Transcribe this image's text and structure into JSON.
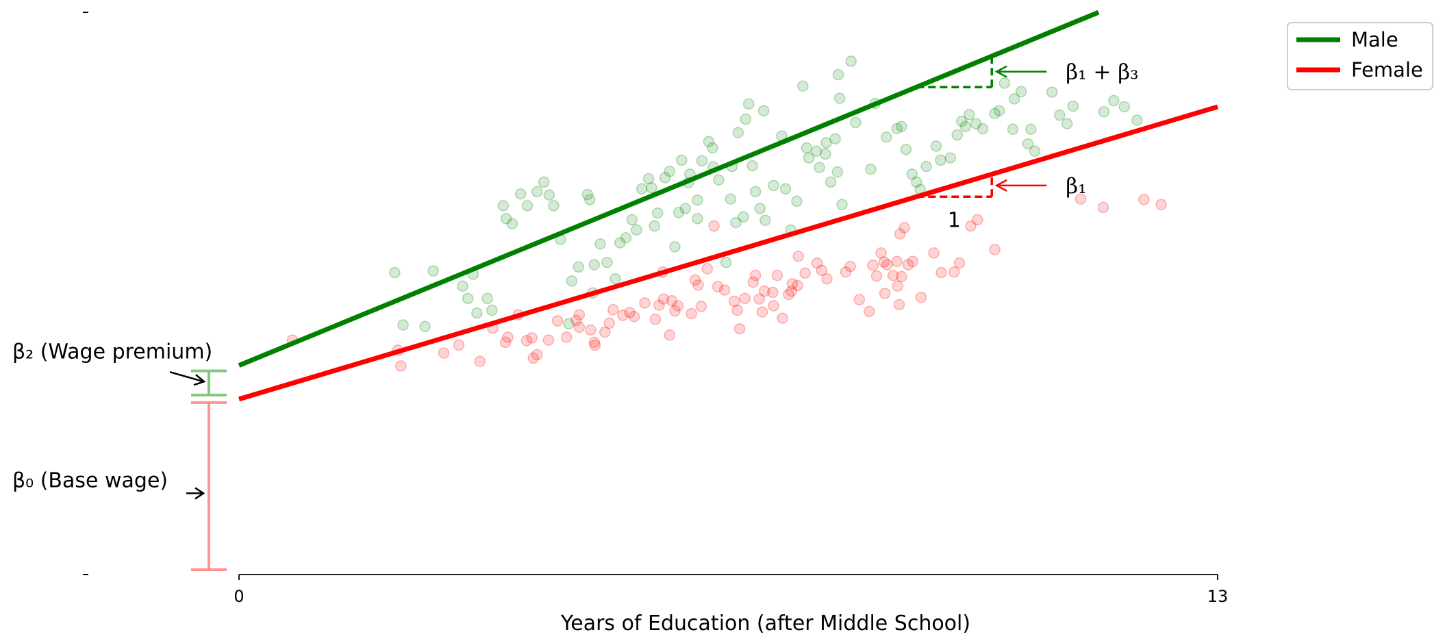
{
  "chart_data": {
    "type": "scatter",
    "xlabel": "Years of Education (after Middle School)",
    "x_ticks": [
      "0",
      "13"
    ],
    "xlim": [
      0,
      13
    ],
    "ylim": [
      0,
      10
    ],
    "grid": false,
    "legend_position": "top-right",
    "series": [
      {
        "name": "Male",
        "color": "#008000",
        "line": {
          "intercept": 3.72,
          "slope": 0.55
        },
        "points": [
          [
            2.07,
            5.37
          ],
          [
            2.58,
            5.4
          ],
          [
            2.18,
            4.44
          ],
          [
            2.47,
            4.41
          ],
          [
            3.11,
            5.34
          ],
          [
            2.97,
            5.13
          ],
          [
            3.04,
            4.91
          ],
          [
            3.16,
            4.65
          ],
          [
            3.3,
            4.91
          ],
          [
            3.36,
            4.7
          ],
          [
            3.51,
            6.56
          ],
          [
            3.55,
            6.33
          ],
          [
            3.63,
            6.24
          ],
          [
            3.74,
            6.77
          ],
          [
            3.83,
            6.56
          ],
          [
            3.96,
            6.81
          ],
          [
            4.05,
            6.98
          ],
          [
            4.12,
            6.75
          ],
          [
            4.18,
            6.56
          ],
          [
            4.27,
            5.96
          ],
          [
            4.38,
            4.46
          ],
          [
            4.42,
            5.22
          ],
          [
            4.51,
            5.47
          ],
          [
            4.63,
            6.76
          ],
          [
            4.66,
            6.67
          ],
          [
            4.7,
            5.01
          ],
          [
            4.72,
            5.51
          ],
          [
            4.8,
            5.88
          ],
          [
            4.89,
            5.55
          ],
          [
            5.0,
            5.26
          ],
          [
            5.06,
            5.9
          ],
          [
            5.14,
            5.99
          ],
          [
            5.22,
            6.31
          ],
          [
            5.28,
            6.13
          ],
          [
            5.35,
            6.86
          ],
          [
            5.44,
            7.04
          ],
          [
            5.48,
            6.88
          ],
          [
            5.52,
            6.2
          ],
          [
            5.56,
            6.43
          ],
          [
            5.66,
            7.06
          ],
          [
            5.72,
            7.17
          ],
          [
            5.79,
            5.83
          ],
          [
            5.84,
            6.44
          ],
          [
            5.88,
            7.37
          ],
          [
            5.93,
            6.51
          ],
          [
            5.97,
            6.97
          ],
          [
            5.99,
            7.12
          ],
          [
            6.09,
            6.66
          ],
          [
            6.09,
            6.33
          ],
          [
            6.15,
            7.36
          ],
          [
            6.24,
            7.7
          ],
          [
            6.29,
            7.59
          ],
          [
            6.3,
            7.25
          ],
          [
            6.37,
            7.02
          ],
          [
            6.47,
            5.55
          ],
          [
            6.53,
            6.68
          ],
          [
            6.55,
            7.26
          ],
          [
            6.6,
            6.26
          ],
          [
            6.63,
            7.86
          ],
          [
            6.7,
            6.36
          ],
          [
            6.73,
            8.1
          ],
          [
            6.77,
            8.37
          ],
          [
            6.82,
            7.27
          ],
          [
            6.86,
            6.81
          ],
          [
            6.92,
            6.51
          ],
          [
            6.97,
            8.25
          ],
          [
            6.99,
            6.3
          ],
          [
            7.1,
            6.92
          ],
          [
            7.21,
            7.8
          ],
          [
            7.26,
            6.86
          ],
          [
            7.33,
            6.13
          ],
          [
            7.41,
            6.64
          ],
          [
            7.49,
            8.69
          ],
          [
            7.54,
            7.59
          ],
          [
            7.57,
            7.41
          ],
          [
            7.67,
            7.53
          ],
          [
            7.71,
            7.24
          ],
          [
            7.79,
            7.48
          ],
          [
            7.8,
            7.68
          ],
          [
            7.86,
            6.98
          ],
          [
            7.92,
            7.75
          ],
          [
            7.95,
            7.16
          ],
          [
            7.96,
            8.89
          ],
          [
            7.98,
            8.47
          ],
          [
            8.01,
            6.58
          ],
          [
            8.13,
            9.13
          ],
          [
            8.19,
            8.04
          ],
          [
            8.39,
            7.21
          ],
          [
            8.45,
            8.38
          ],
          [
            8.6,
            7.78
          ],
          [
            8.74,
            7.93
          ],
          [
            8.8,
            7.97
          ],
          [
            8.86,
            7.56
          ],
          [
            8.94,
            7.12
          ],
          [
            9.0,
            6.98
          ],
          [
            9.05,
            6.85
          ],
          [
            9.13,
            7.26
          ],
          [
            9.26,
            7.62
          ],
          [
            9.32,
            7.37
          ],
          [
            9.45,
            7.41
          ],
          [
            9.54,
            7.82
          ],
          [
            9.6,
            8.06
          ],
          [
            9.65,
            7.97
          ],
          [
            9.7,
            8.18
          ],
          [
            9.79,
            8.02
          ],
          [
            9.88,
            7.93
          ],
          [
            10.04,
            8.2
          ],
          [
            10.1,
            8.25
          ],
          [
            10.17,
            8.74
          ],
          [
            10.28,
            7.92
          ],
          [
            10.3,
            8.46
          ],
          [
            10.39,
            8.59
          ],
          [
            10.48,
            7.66
          ],
          [
            10.52,
            7.92
          ],
          [
            10.57,
            7.53
          ],
          [
            10.8,
            8.58
          ],
          [
            10.9,
            8.17
          ],
          [
            11.0,
            8.02
          ],
          [
            11.08,
            8.33
          ],
          [
            11.49,
            8.23
          ],
          [
            11.62,
            8.43
          ],
          [
            11.76,
            8.32
          ],
          [
            11.93,
            8.08
          ]
        ]
      },
      {
        "name": "Female",
        "color": "#ff0000",
        "line": {
          "intercept": 3.12,
          "slope": 0.4
        },
        "points": [
          [
            0.71,
            4.17
          ],
          [
            2.11,
            3.99
          ],
          [
            2.15,
            3.71
          ],
          [
            2.72,
            3.94
          ],
          [
            2.92,
            4.08
          ],
          [
            3.2,
            3.79
          ],
          [
            3.37,
            4.38
          ],
          [
            3.54,
            4.13
          ],
          [
            3.57,
            4.22
          ],
          [
            3.71,
            4.62
          ],
          [
            3.82,
            4.16
          ],
          [
            3.89,
            4.21
          ],
          [
            3.91,
            3.85
          ],
          [
            3.96,
            3.91
          ],
          [
            4.11,
            4.17
          ],
          [
            4.23,
            4.51
          ],
          [
            4.35,
            4.22
          ],
          [
            4.48,
            4.52
          ],
          [
            4.52,
            4.62
          ],
          [
            4.52,
            4.4
          ],
          [
            4.67,
            4.35
          ],
          [
            4.72,
            4.13
          ],
          [
            4.73,
            4.08
          ],
          [
            4.86,
            4.31
          ],
          [
            4.92,
            4.47
          ],
          [
            4.97,
            4.71
          ],
          [
            5.1,
            4.61
          ],
          [
            5.19,
            4.66
          ],
          [
            5.25,
            4.59
          ],
          [
            5.39,
            4.83
          ],
          [
            5.53,
            4.54
          ],
          [
            5.58,
            4.79
          ],
          [
            5.63,
            5.38
          ],
          [
            5.64,
            4.9
          ],
          [
            5.72,
            4.26
          ],
          [
            5.75,
            4.87
          ],
          [
            5.79,
            4.69
          ],
          [
            5.83,
            4.78
          ],
          [
            6.01,
            4.64
          ],
          [
            6.06,
            5.24
          ],
          [
            6.1,
            5.15
          ],
          [
            6.14,
            4.77
          ],
          [
            6.22,
            5.44
          ],
          [
            6.31,
            6.2
          ],
          [
            6.36,
            5.12
          ],
          [
            6.45,
            5.06
          ],
          [
            6.58,
            4.86
          ],
          [
            6.62,
            4.7
          ],
          [
            6.65,
            4.37
          ],
          [
            6.72,
            4.91
          ],
          [
            6.83,
            5.2
          ],
          [
            6.86,
            5.32
          ],
          [
            6.91,
            4.9
          ],
          [
            6.95,
            4.67
          ],
          [
            6.98,
            5.04
          ],
          [
            7.09,
            5.02
          ],
          [
            7.1,
            4.78
          ],
          [
            7.15,
            5.32
          ],
          [
            7.22,
            4.56
          ],
          [
            7.3,
            4.98
          ],
          [
            7.34,
            5.04
          ],
          [
            7.35,
            5.17
          ],
          [
            7.42,
            5.14
          ],
          [
            7.43,
            5.66
          ],
          [
            7.52,
            5.36
          ],
          [
            7.68,
            5.54
          ],
          [
            7.74,
            5.41
          ],
          [
            7.81,
            5.26
          ],
          [
            8.06,
            5.38
          ],
          [
            8.12,
            5.48
          ],
          [
            8.24,
            4.89
          ],
          [
            8.37,
            4.68
          ],
          [
            8.42,
            5.5
          ],
          [
            8.47,
            5.31
          ],
          [
            8.53,
            5.72
          ],
          [
            8.57,
            5.56
          ],
          [
            8.58,
            5.0
          ],
          [
            8.61,
            5.51
          ],
          [
            8.69,
            5.32
          ],
          [
            8.74,
            5.57
          ],
          [
            8.75,
            5.13
          ],
          [
            8.77,
            4.8
          ],
          [
            8.78,
            6.06
          ],
          [
            8.8,
            5.3
          ],
          [
            8.84,
            6.17
          ],
          [
            8.89,
            5.51
          ],
          [
            8.95,
            5.57
          ],
          [
            9.06,
            4.93
          ],
          [
            9.23,
            5.72
          ],
          [
            9.33,
            5.37
          ],
          [
            9.5,
            5.38
          ],
          [
            9.57,
            5.54
          ],
          [
            9.72,
            6.2
          ],
          [
            9.81,
            6.31
          ],
          [
            10.04,
            5.78
          ],
          [
            11.18,
            6.68
          ],
          [
            11.48,
            6.53
          ],
          [
            12.02,
            6.67
          ],
          [
            12.25,
            6.58
          ]
        ]
      }
    ],
    "annotations": {
      "slope_male_label": "β₁ + β₃",
      "slope_female_label": "β₁",
      "run_label": "1",
      "beta2_label": "β₂ (Wage premium)",
      "beta0_label": "β₀ (Base wage)"
    }
  }
}
